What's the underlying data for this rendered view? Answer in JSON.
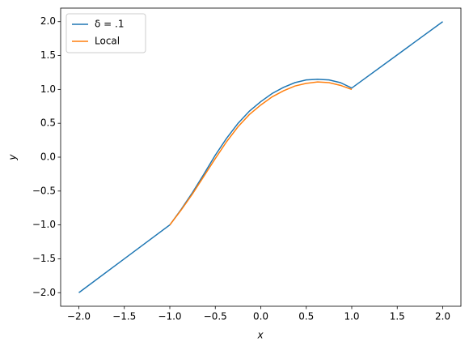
{
  "chart_data": {
    "type": "line",
    "xlabel": "x",
    "ylabel": "y",
    "x": [
      -2,
      -1.5,
      -1,
      -0.875,
      -0.75,
      -0.625,
      -0.5,
      -0.375,
      -0.25,
      -0.125,
      0,
      0.125,
      0.25,
      0.375,
      0.5,
      0.625,
      0.75,
      0.875,
      1,
      1.5,
      2
    ],
    "series": [
      {
        "name": "δ = .1",
        "color": "#1f77b4",
        "values": [
          -2,
          -1.5,
          -1,
          -0.77,
          -0.52,
          -0.25,
          0.03,
          0.28,
          0.5,
          0.68,
          0.82,
          0.94,
          1.03,
          1.1,
          1.14,
          1.15,
          1.14,
          1.1,
          1.02,
          1.51,
          2
        ]
      },
      {
        "name": "Local",
        "color": "#ff7f0e",
        "values": [
          null,
          null,
          -1,
          -0.78,
          -0.54,
          -0.28,
          -0.02,
          0.23,
          0.45,
          0.63,
          0.77,
          0.89,
          0.98,
          1.05,
          1.09,
          1.11,
          1.1,
          1.06,
          1.0,
          null,
          null
        ]
      }
    ],
    "xlim": [
      -2.2,
      2.2
    ],
    "ylim": [
      -2.2,
      2.2
    ],
    "xticks": [
      {
        "value": -2,
        "label": "−2.0"
      },
      {
        "value": -1.5,
        "label": "−1.5"
      },
      {
        "value": -1,
        "label": "−1.0"
      },
      {
        "value": -0.5,
        "label": "−0.5"
      },
      {
        "value": 0,
        "label": "0.0"
      },
      {
        "value": 0.5,
        "label": "0.5"
      },
      {
        "value": 1,
        "label": "1.0"
      },
      {
        "value": 1.5,
        "label": "1.5"
      },
      {
        "value": 2,
        "label": "2.0"
      }
    ],
    "yticks": [
      {
        "value": -2,
        "label": "−2.0"
      },
      {
        "value": -1.5,
        "label": "−1.5"
      },
      {
        "value": -1,
        "label": "−1.0"
      },
      {
        "value": -0.5,
        "label": "−0.5"
      },
      {
        "value": 0,
        "label": "0.0"
      },
      {
        "value": 0.5,
        "label": "0.5"
      },
      {
        "value": 1,
        "label": "1.0"
      },
      {
        "value": 1.5,
        "label": "1.5"
      },
      {
        "value": 2,
        "label": "2.0"
      }
    ],
    "legend": "upper-left"
  }
}
